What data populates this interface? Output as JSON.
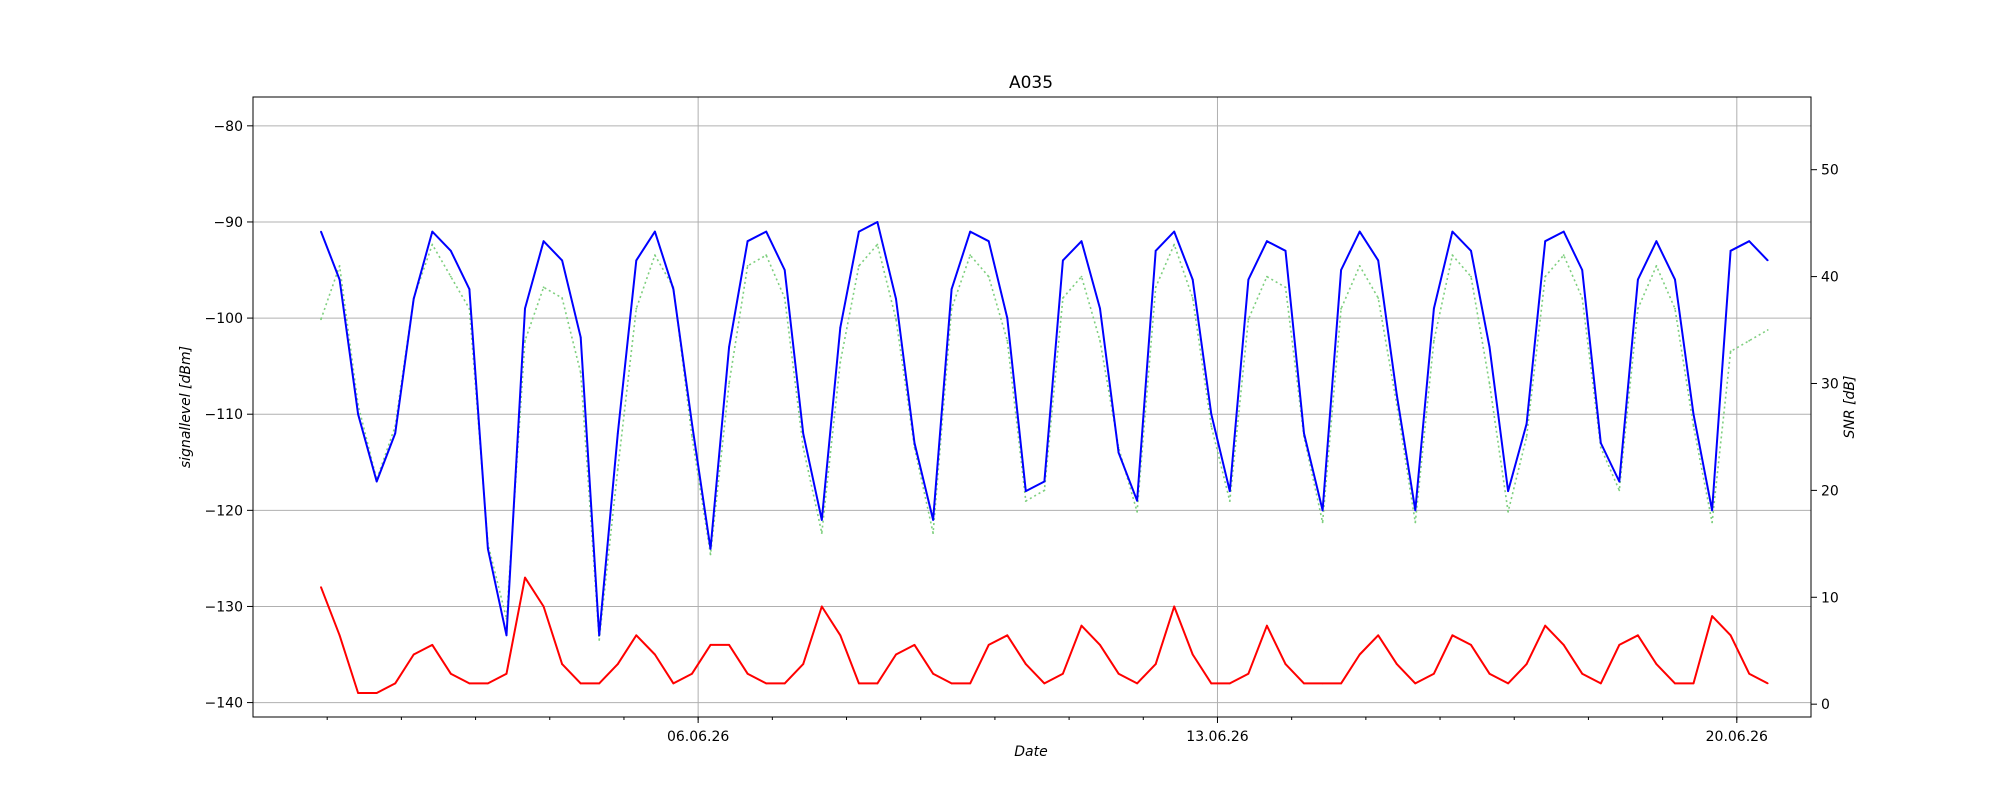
{
  "chart_data": {
    "type": "line",
    "title": "A035",
    "xlabel": "Date",
    "ylabel_left": "signallevel [dBm]",
    "ylabel_right": "SNR [dB]",
    "grid": true,
    "x_tick_labels": [
      "06.06.26",
      "13.06.26",
      "20.06.26"
    ],
    "x_range": [
      "2026-05-31",
      "2026-06-21"
    ],
    "y_left_ticks": [
      -80,
      -90,
      -100,
      -110,
      -120,
      -130,
      -140
    ],
    "y_left_range": [
      -141.5,
      -77
    ],
    "y_right_ticks": [
      0,
      10,
      20,
      30,
      40,
      50
    ],
    "y_right_range": [
      -1.2,
      56.8
    ],
    "series": [
      {
        "axis": "left",
        "color": "#0000ff",
        "style": "solid",
        "x": [
          "2026-05-31 22:00",
          "2026-06-01 04:00",
          "2026-06-01 10:00",
          "2026-06-01 16:00",
          "2026-06-01 22:00",
          "2026-06-02 04:00",
          "2026-06-02 10:00",
          "2026-06-02 16:00",
          "2026-06-02 22:00",
          "2026-06-03 04:00",
          "2026-06-03 10:00",
          "2026-06-03 16:00",
          "2026-06-03 22:00",
          "2026-06-04 04:00",
          "2026-06-04 10:00",
          "2026-06-04 16:00",
          "2026-06-04 22:00",
          "2026-06-05 04:00",
          "2026-06-05 10:00",
          "2026-06-05 16:00",
          "2026-06-05 22:00",
          "2026-06-06 04:00",
          "2026-06-06 10:00",
          "2026-06-06 16:00",
          "2026-06-06 22:00",
          "2026-06-07 04:00",
          "2026-06-07 10:00",
          "2026-06-07 16:00",
          "2026-06-07 22:00",
          "2026-06-08 04:00",
          "2026-06-08 10:00",
          "2026-06-08 16:00",
          "2026-06-08 22:00",
          "2026-06-09 04:00",
          "2026-06-09 10:00",
          "2026-06-09 16:00",
          "2026-06-09 22:00",
          "2026-06-10 04:00",
          "2026-06-10 10:00",
          "2026-06-10 16:00",
          "2026-06-10 22:00",
          "2026-06-11 04:00",
          "2026-06-11 10:00",
          "2026-06-11 16:00",
          "2026-06-11 22:00",
          "2026-06-12 04:00",
          "2026-06-12 10:00",
          "2026-06-12 16:00",
          "2026-06-12 22:00",
          "2026-06-13 04:00",
          "2026-06-13 10:00",
          "2026-06-13 16:00",
          "2026-06-13 22:00",
          "2026-06-14 04:00",
          "2026-06-14 10:00",
          "2026-06-14 16:00",
          "2026-06-14 22:00",
          "2026-06-15 04:00",
          "2026-06-15 10:00",
          "2026-06-15 16:00",
          "2026-06-15 22:00",
          "2026-06-16 04:00",
          "2026-06-16 10:00",
          "2026-06-16 16:00",
          "2026-06-16 22:00",
          "2026-06-17 04:00",
          "2026-06-17 10:00",
          "2026-06-17 16:00",
          "2026-06-17 22:00",
          "2026-06-18 04:00",
          "2026-06-18 10:00",
          "2026-06-18 16:00",
          "2026-06-18 22:00",
          "2026-06-19 04:00",
          "2026-06-19 10:00",
          "2026-06-19 16:00",
          "2026-06-19 22:00",
          "2026-06-20 04:00",
          "2026-06-20 10:00"
        ],
        "y": [
          -91,
          -96,
          -110,
          -117,
          -112,
          -98,
          -91,
          -93,
          -97,
          -124,
          -133,
          -99,
          -92,
          -94,
          -102,
          -133,
          -112,
          -94,
          -91,
          -97,
          -111,
          -124,
          -103,
          -92,
          -91,
          -95,
          -112,
          -121,
          -101,
          -91,
          -90,
          -98,
          -113,
          -121,
          -97,
          -91,
          -92,
          -100,
          -118,
          -117,
          -94,
          -92,
          -99,
          -114,
          -119,
          -93,
          -91,
          -96,
          -110,
          -118,
          -96,
          -92,
          -93,
          -112,
          -120,
          -95,
          -91,
          -94,
          -108,
          -120,
          -99,
          -91,
          -93,
          -103,
          -118,
          -111,
          -92,
          -91,
          -95,
          -113,
          -117,
          -96,
          -92,
          -96,
          -110,
          -120,
          -93,
          -92,
          -94
        ]
      },
      {
        "axis": "left",
        "color": "#ff0000",
        "style": "solid",
        "x": [
          "2026-05-31 22:00",
          "2026-06-01 04:00",
          "2026-06-01 10:00",
          "2026-06-01 16:00",
          "2026-06-01 22:00",
          "2026-06-02 04:00",
          "2026-06-02 10:00",
          "2026-06-02 16:00",
          "2026-06-02 22:00",
          "2026-06-03 04:00",
          "2026-06-03 10:00",
          "2026-06-03 16:00",
          "2026-06-03 22:00",
          "2026-06-04 04:00",
          "2026-06-04 10:00",
          "2026-06-04 16:00",
          "2026-06-04 22:00",
          "2026-06-05 04:00",
          "2026-06-05 10:00",
          "2026-06-05 16:00",
          "2026-06-05 22:00",
          "2026-06-06 04:00",
          "2026-06-06 10:00",
          "2026-06-06 16:00",
          "2026-06-06 22:00",
          "2026-06-07 04:00",
          "2026-06-07 10:00",
          "2026-06-07 16:00",
          "2026-06-07 22:00",
          "2026-06-08 04:00",
          "2026-06-08 10:00",
          "2026-06-08 16:00",
          "2026-06-08 22:00",
          "2026-06-09 04:00",
          "2026-06-09 10:00",
          "2026-06-09 16:00",
          "2026-06-09 22:00",
          "2026-06-10 04:00",
          "2026-06-10 10:00",
          "2026-06-10 16:00",
          "2026-06-10 22:00",
          "2026-06-11 04:00",
          "2026-06-11 10:00",
          "2026-06-11 16:00",
          "2026-06-11 22:00",
          "2026-06-12 04:00",
          "2026-06-12 10:00",
          "2026-06-12 16:00",
          "2026-06-12 22:00",
          "2026-06-13 04:00",
          "2026-06-13 10:00",
          "2026-06-13 16:00",
          "2026-06-13 22:00",
          "2026-06-14 04:00",
          "2026-06-14 10:00",
          "2026-06-14 16:00",
          "2026-06-14 22:00",
          "2026-06-15 04:00",
          "2026-06-15 10:00",
          "2026-06-15 16:00",
          "2026-06-15 22:00",
          "2026-06-16 04:00",
          "2026-06-16 10:00",
          "2026-06-16 16:00",
          "2026-06-16 22:00",
          "2026-06-17 04:00",
          "2026-06-17 10:00",
          "2026-06-17 16:00",
          "2026-06-17 22:00",
          "2026-06-18 04:00",
          "2026-06-18 10:00",
          "2026-06-18 16:00",
          "2026-06-18 22:00",
          "2026-06-19 04:00",
          "2026-06-19 10:00",
          "2026-06-19 16:00",
          "2026-06-19 22:00",
          "2026-06-20 04:00",
          "2026-06-20 10:00"
        ],
        "y": [
          -128,
          -133,
          -139,
          -139,
          -138,
          -135,
          -134,
          -137,
          -138,
          -138,
          -137,
          -127,
          -130,
          -136,
          -138,
          -138,
          -136,
          -133,
          -135,
          -138,
          -137,
          -134,
          -134,
          -137,
          -138,
          -138,
          -136,
          -130,
          -133,
          -138,
          -138,
          -135,
          -134,
          -137,
          -138,
          -138,
          -134,
          -133,
          -136,
          -138,
          -137,
          -132,
          -134,
          -137,
          -138,
          -136,
          -130,
          -135,
          -138,
          -138,
          -137,
          -132,
          -136,
          -138,
          -138,
          -138,
          -135,
          -133,
          -136,
          -138,
          -137,
          -133,
          -134,
          -137,
          -138,
          -136,
          -132,
          -134,
          -137,
          -138,
          -134,
          -133,
          -136,
          -138,
          -138,
          -131,
          -133,
          -137,
          -138
        ]
      },
      {
        "axis": "right",
        "color": "#7fcf7f",
        "style": "dotted",
        "x": [
          "2026-05-31 22:00",
          "2026-06-01 04:00",
          "2026-06-01 10:00",
          "2026-06-01 16:00",
          "2026-06-01 22:00",
          "2026-06-02 04:00",
          "2026-06-02 10:00",
          "2026-06-02 16:00",
          "2026-06-02 22:00",
          "2026-06-03 04:00",
          "2026-06-03 10:00",
          "2026-06-03 16:00",
          "2026-06-03 22:00",
          "2026-06-04 04:00",
          "2026-06-04 10:00",
          "2026-06-04 16:00",
          "2026-06-04 22:00",
          "2026-06-05 04:00",
          "2026-06-05 10:00",
          "2026-06-05 16:00",
          "2026-06-05 22:00",
          "2026-06-06 04:00",
          "2026-06-06 10:00",
          "2026-06-06 16:00",
          "2026-06-06 22:00",
          "2026-06-07 04:00",
          "2026-06-07 10:00",
          "2026-06-07 16:00",
          "2026-06-07 22:00",
          "2026-06-08 04:00",
          "2026-06-08 10:00",
          "2026-06-08 16:00",
          "2026-06-08 22:00",
          "2026-06-09 04:00",
          "2026-06-09 10:00",
          "2026-06-09 16:00",
          "2026-06-09 22:00",
          "2026-06-10 04:00",
          "2026-06-10 10:00",
          "2026-06-10 16:00",
          "2026-06-10 22:00",
          "2026-06-11 04:00",
          "2026-06-11 10:00",
          "2026-06-11 16:00",
          "2026-06-11 22:00",
          "2026-06-12 04:00",
          "2026-06-12 10:00",
          "2026-06-12 16:00",
          "2026-06-12 22:00",
          "2026-06-13 04:00",
          "2026-06-13 10:00",
          "2026-06-13 16:00",
          "2026-06-13 22:00",
          "2026-06-14 04:00",
          "2026-06-14 10:00",
          "2026-06-14 16:00",
          "2026-06-14 22:00",
          "2026-06-15 04:00",
          "2026-06-15 10:00",
          "2026-06-15 16:00",
          "2026-06-15 22:00",
          "2026-06-16 04:00",
          "2026-06-16 10:00",
          "2026-06-16 16:00",
          "2026-06-16 22:00",
          "2026-06-17 04:00",
          "2026-06-17 10:00",
          "2026-06-17 16:00",
          "2026-06-17 22:00",
          "2026-06-18 04:00",
          "2026-06-18 10:00",
          "2026-06-18 16:00",
          "2026-06-18 22:00",
          "2026-06-19 04:00",
          "2026-06-19 10:00",
          "2026-06-19 16:00",
          "2026-06-19 22:00",
          "2026-06-20 04:00",
          "2026-06-20 10:00"
        ],
        "y": [
          36,
          41,
          28,
          21,
          26,
          38,
          43,
          40,
          37,
          15,
          8,
          34,
          39,
          38,
          31,
          6,
          22,
          37,
          42,
          39,
          25,
          14,
          30,
          41,
          42,
          38,
          24,
          16,
          32,
          41,
          43,
          36,
          24,
          16,
          37,
          42,
          40,
          34,
          19,
          20,
          38,
          40,
          34,
          24,
          18,
          39,
          43,
          38,
          26,
          19,
          36,
          40,
          39,
          25,
          17,
          37,
          41,
          38,
          28,
          17,
          34,
          42,
          40,
          30,
          18,
          25,
          40,
          42,
          38,
          24,
          20,
          37,
          41,
          37,
          26,
          17,
          33,
          34,
          35
        ]
      }
    ]
  }
}
